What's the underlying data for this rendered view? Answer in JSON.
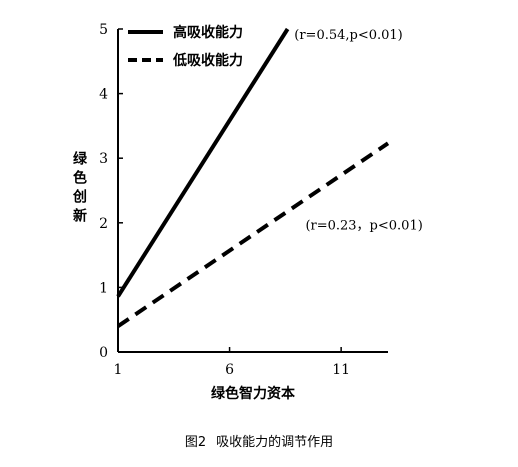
{
  "chart_data": {
    "type": "line",
    "xlabel": "绿色智力资本",
    "ylabel": "绿色创新",
    "x_ticks": [
      1,
      6,
      11
    ],
    "y_ticks": [
      0,
      1,
      2,
      3,
      4,
      5
    ],
    "xlim": [
      1,
      13.1
    ],
    "ylim": [
      0,
      5
    ],
    "grid": false,
    "legend_position": "top-left",
    "series": [
      {
        "name": "高吸收能力",
        "style": "solid",
        "color": "#000000",
        "points": [
          [
            1,
            0.86
          ],
          [
            8.6,
            5.0
          ]
        ]
      },
      {
        "name": "低吸收能力",
        "style": "dashed",
        "color": "#000000",
        "points": [
          [
            1,
            0.4
          ],
          [
            13.1,
            3.23
          ]
        ]
      }
    ],
    "annotations": [
      {
        "text": "(r=0.54,p<0.01)",
        "x": 8.9,
        "y": 4.92
      },
      {
        "text": "(r=0.23，p<0.01)",
        "x": 9.4,
        "y": 1.97
      }
    ]
  },
  "caption": {
    "figure_no": "图2",
    "title": "吸收能力的调节作用"
  }
}
